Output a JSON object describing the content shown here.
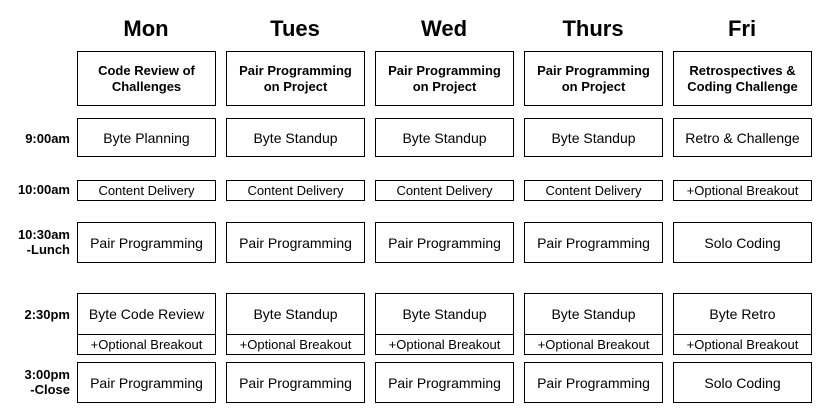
{
  "days": [
    "Mon",
    "Tues",
    "Wed",
    "Thurs",
    "Fri"
  ],
  "topics": [
    "Code Review of Challenges",
    "Pair Programming on Project",
    "Pair Programming on Project",
    "Pair Programming on Project",
    "Retrospectives & Coding Challenge"
  ],
  "times": {
    "t900": "9:00am",
    "t1000": "10:00am",
    "t1030": "10:30am\n-Lunch",
    "t230": "2:30pm",
    "t300": "3:00pm\n-Close"
  },
  "rows": {
    "r900": [
      "Byte Planning",
      "Byte Standup",
      "Byte Standup",
      "Byte Standup",
      "Retro & Challenge"
    ],
    "r1000": [
      "Content Delivery",
      "Content Delivery",
      "Content Delivery",
      "Content Delivery",
      "+Optional Breakout"
    ],
    "r1030": [
      "Pair Programming",
      "Pair Programming",
      "Pair Programming",
      "Pair Programming",
      "Solo Coding"
    ],
    "r230": [
      "Byte Code Review",
      "Byte Standup",
      "Byte Standup",
      "Byte Standup",
      "Byte Retro"
    ],
    "r230b": [
      "+Optional Breakout",
      "+Optional Breakout",
      "+Optional Breakout",
      "+Optional Breakout",
      "+Optional Breakout"
    ],
    "r300": [
      "Pair Programming",
      "Pair Programming",
      "Pair Programming",
      "Pair Programming",
      "Solo Coding"
    ]
  }
}
